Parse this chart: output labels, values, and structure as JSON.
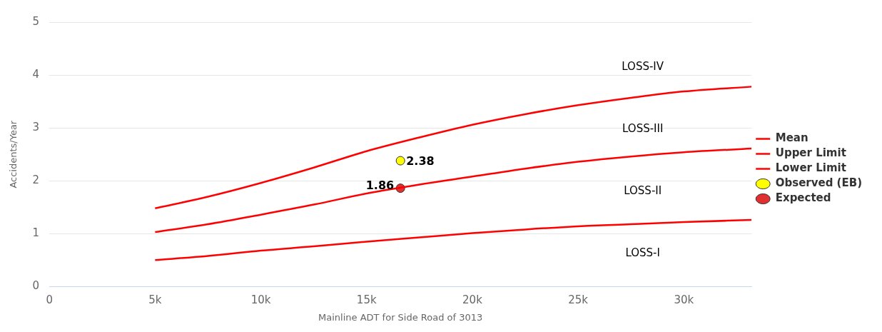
{
  "chart_data": {
    "type": "line",
    "xlabel": "Mainline ADT for Side Road of 3013",
    "ylabel": "Accidents/Year",
    "x": [
      5000,
      7500,
      10000,
      12500,
      15000,
      17500,
      20000,
      22500,
      25000,
      27500,
      30000,
      33200
    ],
    "series": [
      {
        "name": "Mean",
        "color": "#ff0000",
        "values": [
          1.03,
          1.18,
          1.36,
          1.55,
          1.76,
          1.93,
          2.08,
          2.23,
          2.36,
          2.46,
          2.54,
          2.61
        ]
      },
      {
        "name": "Upper Limit",
        "color": "#ff0000",
        "values": [
          1.48,
          1.7,
          1.96,
          2.25,
          2.56,
          2.82,
          3.06,
          3.26,
          3.43,
          3.57,
          3.69,
          3.78
        ]
      },
      {
        "name": "Lower Limit",
        "color": "#ff0000",
        "values": [
          0.5,
          0.58,
          0.68,
          0.76,
          0.85,
          0.93,
          1.01,
          1.08,
          1.14,
          1.18,
          1.22,
          1.26
        ]
      },
      {
        "name": "Observed (EB)",
        "type": "scatter",
        "marker": "circle",
        "color": "#ffff00",
        "x": [
          16600
        ],
        "values": [
          2.38
        ],
        "value_labels": [
          "2.38"
        ]
      },
      {
        "name": "Expected",
        "type": "scatter",
        "marker": "circle",
        "color": "#e03030",
        "x": [
          16600
        ],
        "values": [
          1.86
        ],
        "value_labels": [
          "1.86"
        ]
      }
    ],
    "xlim": [
      0,
      33200
    ],
    "xticks": [
      0,
      {
        "value": 5000,
        "label": "5k"
      },
      {
        "value": 10000,
        "label": "10k"
      },
      {
        "value": 15000,
        "label": "15k"
      },
      {
        "value": 20000,
        "label": "20k"
      },
      {
        "value": 25000,
        "label": "25k"
      },
      {
        "value": 30000,
        "label": "30k"
      }
    ],
    "ylim": [
      0,
      5
    ],
    "yticks": [
      0,
      1,
      2,
      3,
      4,
      5
    ],
    "grid": "y",
    "legend": "right",
    "annotations": [
      "LOSS-IV",
      "LOSS-III",
      "LOSS-II",
      "LOSS-I"
    ]
  }
}
